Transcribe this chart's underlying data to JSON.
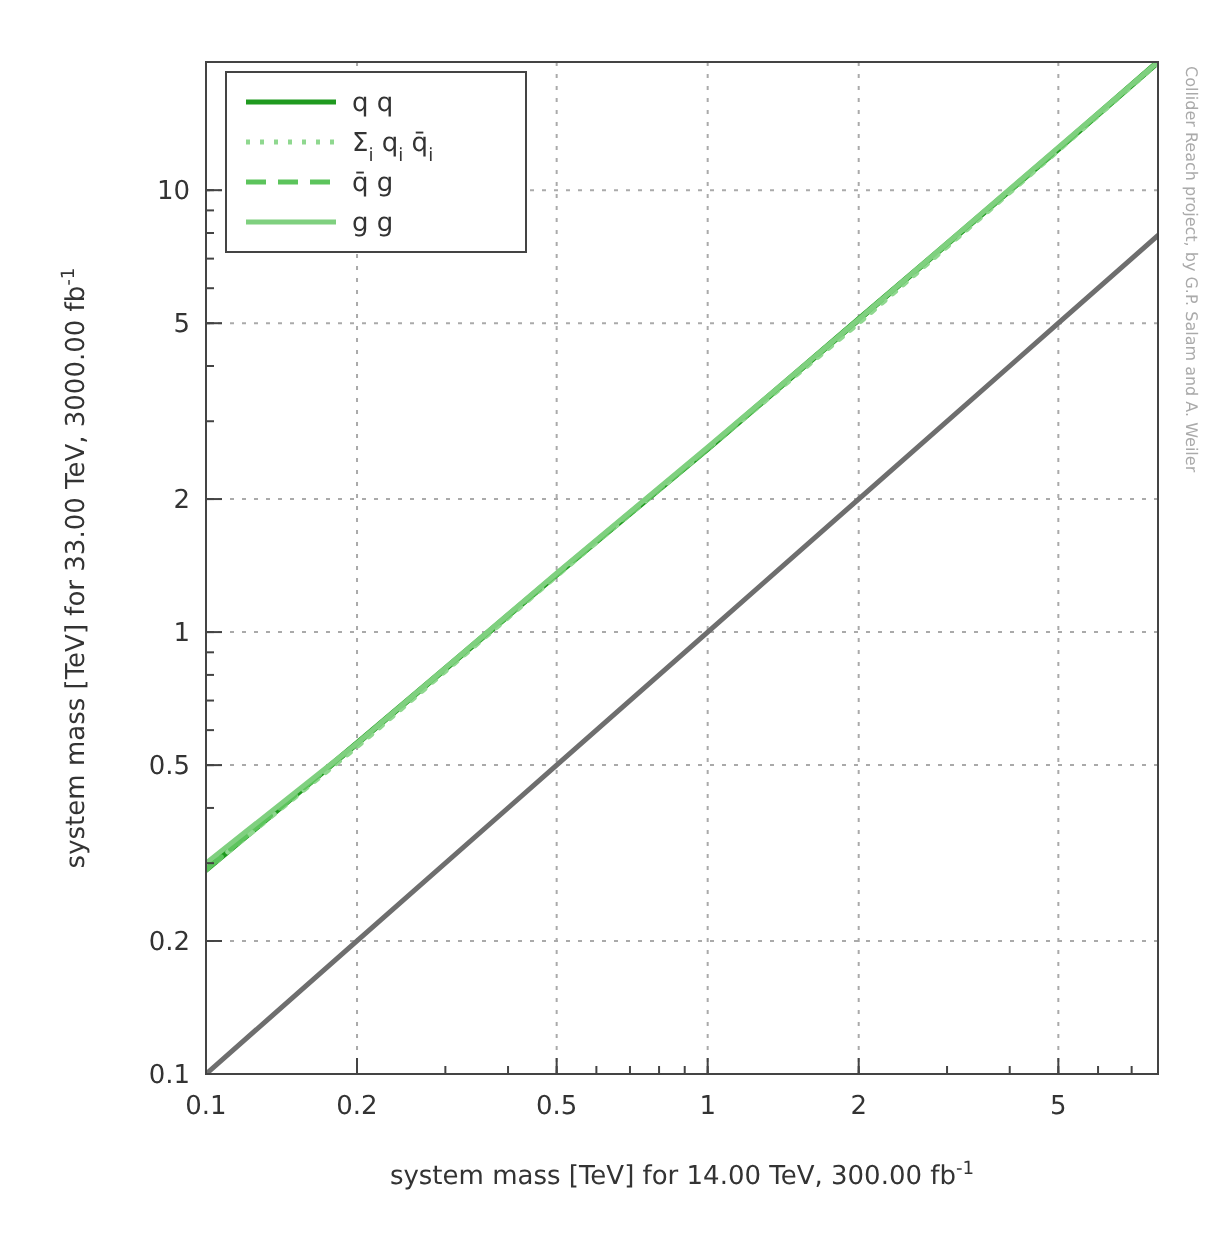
{
  "chart_data": {
    "type": "line",
    "xlabel": "system mass [TeV] for 14.00 TeV, 300.00 fb$^{-1}$",
    "ylabel": "system mass [TeV] for 33.00 TeV, 3000.00 fb$^{-1}$",
    "x": [
      0.1,
      0.2,
      0.5,
      1,
      2,
      5,
      7.9
    ],
    "series": [
      {
        "name": "q q",
        "color": "#1f9a1f",
        "values": [
          0.29,
          0.56,
          1.35,
          2.6,
          5.1,
          12.4,
          19.5
        ],
        "line_style": "solid"
      },
      {
        "name": "Σ$_{i}$ q$_{i}$ q̄$_{i}$",
        "color": "#8fd88f",
        "values": [
          0.29,
          0.55,
          1.34,
          2.6,
          5.0,
          12.3,
          19.4
        ],
        "line_style": "dotted"
      },
      {
        "name": "q̄ g",
        "color": "#5cc45c",
        "values": [
          0.29,
          0.56,
          1.35,
          2.6,
          5.1,
          12.4,
          19.5
        ],
        "line_style": "dashed"
      },
      {
        "name": "g g",
        "color": "#7fd07f",
        "values": [
          0.3,
          0.56,
          1.36,
          2.62,
          5.1,
          12.5,
          19.5
        ],
        "line_style": "solid"
      },
      {
        "color": "#6e6e6e",
        "values": [
          0.1,
          0.2,
          0.5,
          1,
          2,
          5,
          7.9
        ],
        "line_style": "solid"
      }
    ],
    "log": "xy",
    "xlim": [
      0.1,
      7.9
    ],
    "ylim": [
      0.1,
      19.5
    ],
    "xticks": [
      0.1,
      0.2,
      0.5,
      1,
      2,
      5
    ],
    "yticks": [
      0.1,
      0.2,
      0.5,
      1,
      2,
      5,
      10
    ],
    "grid": true,
    "legend": "top left",
    "annotations": [
      "Collider Reach project, by G.P. Salam and A. Weiler"
    ]
  }
}
